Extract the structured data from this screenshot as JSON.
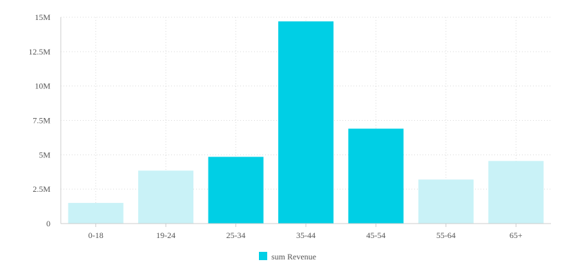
{
  "chart_data": {
    "type": "bar",
    "title": "",
    "xlabel": "",
    "ylabel": "",
    "categories": [
      "0-18",
      "19-24",
      "25-34",
      "35-44",
      "45-54",
      "55-64",
      "65+"
    ],
    "series": [
      {
        "name": "sum Revenue",
        "values": [
          1500000,
          3850000,
          4850000,
          14700000,
          6900000,
          3200000,
          4550000
        ],
        "highlighted": [
          false,
          false,
          true,
          true,
          true,
          false,
          false
        ]
      }
    ],
    "ylim": [
      0,
      15000000
    ],
    "yticks": [
      0,
      2500000,
      5000000,
      7500000,
      10000000,
      12500000,
      15000000
    ],
    "ytick_labels": [
      "0",
      "2.5M",
      "5M",
      "7.5M",
      "10M",
      "12.5M",
      "15M"
    ],
    "grid": true,
    "legend_position": "bottom-center",
    "colors": {
      "highlight": "#00cfe5",
      "muted": "#c9f2f7",
      "legend_swatch": "#00cfe5"
    }
  }
}
